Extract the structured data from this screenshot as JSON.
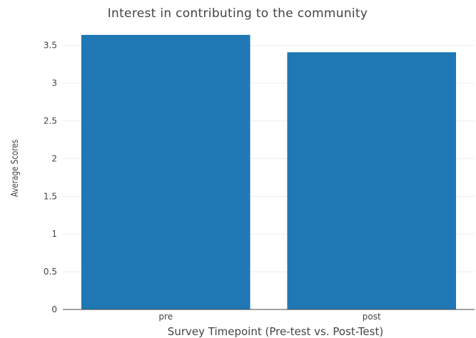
{
  "chart_data": {
    "type": "bar",
    "title": "Interest in contributing to the community",
    "xlabel": "Survey Timepoint (Pre-test vs. Post-Test)",
    "ylabel": "Average Scores",
    "categories": [
      "pre",
      "post"
    ],
    "values": [
      3.64,
      3.41
    ],
    "ylim": [
      0,
      3.8
    ],
    "yticks": [
      0,
      0.5,
      1,
      1.5,
      2,
      2.5,
      3,
      3.5
    ],
    "ytick_labels": [
      "0",
      "0.5",
      "1",
      "1.5",
      "2",
      "2.5",
      "3",
      "3.5"
    ],
    "bar_color": "#1f77b4",
    "grid": true,
    "legend": "none"
  }
}
